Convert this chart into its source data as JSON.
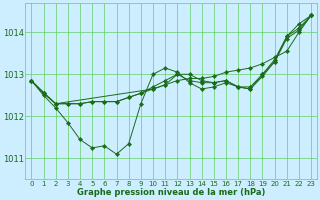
{
  "background_color": "#cceeff",
  "grid_color": "#66cc66",
  "line_color": "#1a6b1a",
  "xlabel": "Graphe pression niveau de la mer (hPa)",
  "xlim": [
    -0.5,
    23.5
  ],
  "ylim": [
    1010.5,
    1014.7
  ],
  "yticks": [
    1011,
    1012,
    1013,
    1014
  ],
  "xticks": [
    0,
    1,
    2,
    3,
    4,
    5,
    6,
    7,
    8,
    9,
    10,
    11,
    12,
    13,
    14,
    15,
    16,
    17,
    18,
    19,
    20,
    21,
    22,
    23
  ],
  "series": [
    {
      "x": [
        0,
        1,
        2,
        3,
        4,
        5,
        6,
        7,
        8,
        9,
        10,
        11,
        12,
        13,
        14,
        15,
        16,
        17,
        18,
        19,
        20,
        21,
        22,
        23
      ],
      "y": [
        1012.85,
        1012.5,
        1012.2,
        1011.85,
        1011.45,
        1011.25,
        1011.3,
        1011.1,
        1011.35,
        1012.3,
        1013.0,
        1013.15,
        1013.05,
        1012.8,
        1012.65,
        1012.7,
        1012.8,
        1012.7,
        1012.7,
        1013.0,
        1013.3,
        1013.9,
        1014.2,
        1014.4
      ]
    },
    {
      "x": [
        0,
        1,
        2,
        3,
        4,
        5,
        6,
        7,
        8,
        9,
        10,
        11,
        12,
        13,
        14,
        15,
        16,
        17,
        18,
        19,
        20,
        21,
        22,
        23
      ],
      "y": [
        1012.85,
        1012.55,
        1012.3,
        1012.3,
        1012.3,
        1012.35,
        1012.35,
        1012.35,
        1012.45,
        1012.55,
        1012.65,
        1012.75,
        1012.85,
        1012.9,
        1012.9,
        1012.95,
        1013.05,
        1013.1,
        1013.15,
        1013.25,
        1013.4,
        1013.55,
        1014.0,
        1014.4
      ]
    },
    {
      "x": [
        0,
        1,
        2,
        3,
        4,
        5,
        6,
        7,
        8,
        9,
        10,
        11,
        12,
        13,
        14,
        15,
        16,
        17,
        18,
        19,
        20,
        21,
        22,
        23
      ],
      "y": [
        1012.85,
        1012.55,
        1012.3,
        1012.3,
        1012.3,
        1012.35,
        1012.35,
        1012.35,
        1012.45,
        1012.55,
        1012.7,
        1012.85,
        1013.0,
        1013.0,
        1012.85,
        1012.8,
        1012.85,
        1012.7,
        1012.65,
        1012.95,
        1013.3,
        1013.85,
        1014.05,
        1014.4
      ]
    },
    {
      "x": [
        0,
        2,
        10,
        11,
        12,
        13,
        14,
        15,
        16,
        17,
        18,
        19,
        20,
        21,
        22,
        23
      ],
      "y": [
        1012.85,
        1012.3,
        1012.65,
        1012.75,
        1013.0,
        1012.85,
        1012.8,
        1012.8,
        1012.85,
        1012.7,
        1012.65,
        1013.0,
        1013.35,
        1013.9,
        1014.1,
        1014.4
      ]
    }
  ]
}
